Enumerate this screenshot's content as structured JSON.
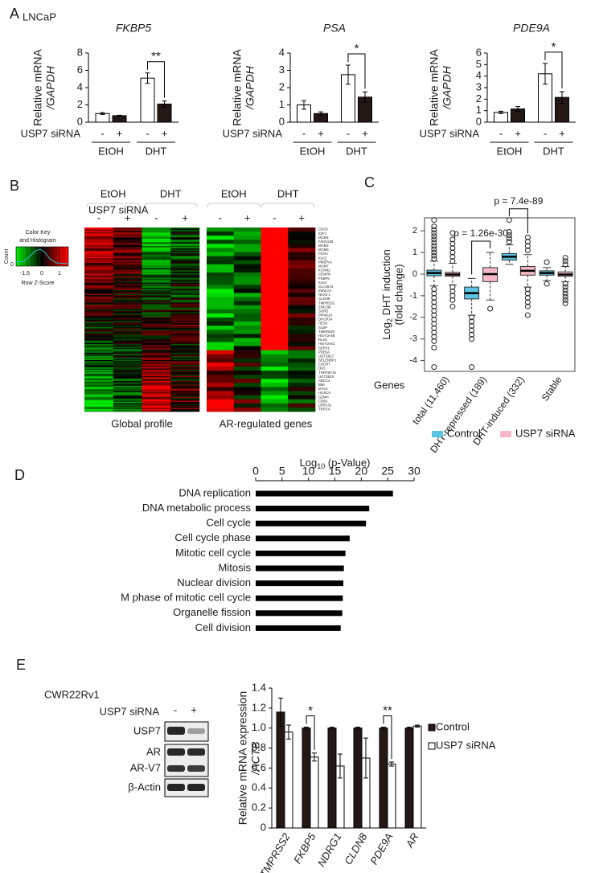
{
  "chart_data": [
    {
      "type": "bar",
      "title": "FKBP5",
      "ylabel": [
        "Relative mRNA",
        "/GAPDH"
      ],
      "categories": [
        "EtOH",
        "DHT"
      ],
      "row_label": "USP7 siRNA",
      "series": [
        {
          "name": "-",
          "color": "#ffffff",
          "values": [
            1.0,
            5.1
          ],
          "errors": [
            0.1,
            0.6
          ]
        },
        {
          "name": "+",
          "color": "#231815",
          "values": [
            0.75,
            2.1
          ],
          "errors": [
            0.05,
            0.35
          ]
        }
      ],
      "ylim": [
        0,
        8
      ],
      "yticks": [
        0,
        2,
        4,
        6,
        8
      ],
      "significance": [
        null,
        "**"
      ]
    },
    {
      "type": "bar",
      "title": "PSA",
      "ylabel": [
        "Relative mRNA",
        "/GAPDH"
      ],
      "categories": [
        "EtOH",
        "DHT"
      ],
      "row_label": "USP7 siRNA",
      "series": [
        {
          "name": "-",
          "color": "#ffffff",
          "values": [
            1.0,
            2.75
          ],
          "errors": [
            0.25,
            0.55
          ]
        },
        {
          "name": "+",
          "color": "#231815",
          "values": [
            0.5,
            1.45
          ],
          "errors": [
            0.1,
            0.3
          ]
        }
      ],
      "ylim": [
        0,
        4
      ],
      "yticks": [
        0,
        1,
        2,
        3,
        4
      ],
      "significance": [
        null,
        "*"
      ]
    },
    {
      "type": "bar",
      "title": "PDE9A",
      "ylabel": [
        "Relative mRNA",
        "/GAPDH"
      ],
      "categories": [
        "EtOH",
        "DHT"
      ],
      "row_label": "USP7 siRNA",
      "series": [
        {
          "name": "-",
          "color": "#ffffff",
          "values": [
            0.85,
            4.2
          ],
          "errors": [
            0.1,
            0.9
          ]
        },
        {
          "name": "+",
          "color": "#231815",
          "values": [
            1.15,
            2.15
          ],
          "errors": [
            0.2,
            0.5
          ]
        }
      ],
      "ylim": [
        0,
        6
      ],
      "yticks": [
        0,
        1,
        2,
        3,
        4,
        5,
        6
      ],
      "significance": [
        null,
        "*"
      ]
    },
    {
      "type": "box",
      "ylabel": {
        "main": "Log",
        "sub": "2",
        "rest": " DHT induction",
        "line2": "(fold change)"
      },
      "xlabel": "Genes",
      "categories": [
        "total (11,460)",
        "DHT-repressed (189)",
        "DHT-induced (332)",
        "Stable"
      ],
      "series": [
        {
          "name": "Control",
          "color": "#5bc3e3",
          "whisker_low": [
            -0.55,
            -1.9,
            0.45,
            -0.3
          ],
          "q1": [
            -0.08,
            -1.15,
            0.65,
            -0.05
          ],
          "median": [
            0.05,
            -0.88,
            0.8,
            0.05
          ],
          "q3": [
            0.18,
            -0.6,
            0.95,
            0.15
          ],
          "whisker_high": [
            0.6,
            -0.2,
            1.35,
            0.3
          ],
          "outliers": [
            [
              0.7,
              0.85,
              1.0,
              1.15,
              1.3,
              1.45,
              1.6,
              1.75,
              1.9,
              2.05,
              2.2,
              2.5,
              -0.7,
              -0.9,
              -1.1,
              -1.3,
              -1.5,
              -1.7,
              -1.9,
              -2.1,
              -2.3,
              -2.5,
              -2.7,
              -2.9,
              -3.1,
              -3.4,
              -4.3
            ],
            [
              -2.0,
              -2.2,
              -2.4,
              -2.6,
              -2.8,
              -3.0,
              -4.3
            ],
            [
              1.5,
              1.65,
              1.8,
              1.95,
              2.5
            ],
            [
              -0.45,
              0.55
            ]
          ]
        },
        {
          "name": "USP7 siRNA",
          "color": "#f6b8c6",
          "whisker_low": [
            -0.5,
            -1.2,
            -0.6,
            -0.35
          ],
          "q1": [
            -0.1,
            -0.35,
            -0.05,
            -0.1
          ],
          "median": [
            -0.02,
            0.0,
            0.15,
            -0.02
          ],
          "q3": [
            0.08,
            0.3,
            0.35,
            0.1
          ],
          "whisker_high": [
            0.5,
            1.0,
            0.9,
            0.35
          ],
          "outliers": [
            [
              0.6,
              0.8,
              1.0,
              1.2,
              1.4,
              1.6,
              1.9,
              -0.6,
              -0.8,
              -1.0,
              -1.2,
              -1.5
            ],
            [
              -1.6
            ],
            [
              1.1,
              1.3,
              1.5,
              1.7,
              -0.7,
              -0.9,
              -1.1,
              -1.3,
              -1.5,
              -1.9
            ],
            [
              0.45,
              0.6,
              0.75,
              -0.45,
              -0.6,
              -0.75,
              -0.9,
              -1.05,
              -1.2,
              -1.35
            ]
          ]
        }
      ],
      "ylim": [
        -4.5,
        2.6
      ],
      "yticks": [
        -4,
        -3,
        -2,
        -1,
        0,
        1,
        2
      ],
      "comparisons": [
        null,
        "p = 1.26e-30",
        "p = 7.4e-89",
        null
      ],
      "legend": "bottom"
    },
    {
      "type": "hbar",
      "xlabel": {
        "main": "Log",
        "sub": "10",
        "rest": " (p-Value)"
      },
      "categories": [
        "DNA replication",
        "DNA metabolic process",
        "Cell cycle",
        "Cell cycle phase",
        "Mitotic cell cycle",
        "Mitosis",
        "Nuclear division",
        "M phase of mitotic cell cycle",
        "Organelle fission",
        "Cell division"
      ],
      "values": [
        26,
        21.5,
        20.9,
        17.8,
        17,
        16.7,
        16.6,
        16.5,
        16.4,
        16.1
      ],
      "color": "#000000",
      "xlim": [
        0,
        30
      ],
      "xticks": [
        0,
        5,
        10,
        15,
        20,
        25,
        30
      ]
    },
    {
      "type": "bar",
      "ylabel": [
        "Relative mRNA expression",
        "/ACTB"
      ],
      "categories": [
        "TMPRSS2",
        "FKBP5",
        "NDRG1",
        "CLDN8",
        "PDE9A",
        "AR"
      ],
      "series": [
        {
          "name": "Control",
          "color": "#231815",
          "values": [
            1.16,
            1.0,
            1.0,
            1.0,
            1.0,
            1.0
          ],
          "errors": [
            0.14,
            0.01,
            0.01,
            0.01,
            0.01,
            0.01
          ]
        },
        {
          "name": "USP7 siRNA",
          "color": "#ffffff",
          "values": [
            0.96,
            0.71,
            0.62,
            0.7,
            0.64,
            1.02
          ],
          "errors": [
            0.07,
            0.04,
            0.12,
            0.2,
            0.02,
            0.01
          ]
        }
      ],
      "ylim": [
        0,
        1.4
      ],
      "yticks": [
        0,
        0.2,
        0.4,
        0.6,
        0.8,
        {
          "value": 1,
          "label": "1.0"
        },
        1.2,
        1.4
      ],
      "significance": [
        null,
        "*",
        null,
        null,
        "**",
        null
      ],
      "legend": "right"
    }
  ],
  "panel_a": {
    "label": "A",
    "cell_line": "LNCaP"
  },
  "panel_b": {
    "label": "B",
    "groups": [
      "EtOH",
      "DHT",
      "EtOH",
      "DHT"
    ],
    "row_label": "USP7 siRNA",
    "signs": [
      "-",
      "+",
      "-",
      "+",
      "-",
      "+",
      "-",
      "+"
    ],
    "color_key": {
      "title": [
        "Color Key",
        "and Histogram"
      ],
      "y_label": "Count",
      "y_tick": "0",
      "x_ticks": [
        "-1.5",
        "0",
        "1"
      ],
      "x_label": "Row Z-Score"
    },
    "captions": [
      "Global profile",
      "AR-regulated genes"
    ],
    "genes": [
      "CDC6",
      "E2F1",
      "MCM4",
      "FAM111B",
      "MCM2",
      "MCM5",
      "PCNA",
      "KLK2",
      "PMEPA1",
      "MCM7",
      "KCNN2",
      "CENPN",
      "FKBP5",
      "KLK4",
      "SLC45A3",
      "ZWILCH",
      "NKX3-1",
      "CLDN8",
      "TMPRSS2",
      "ZNF239",
      "SORD",
      "PIP4K2A",
      "DHCR24",
      "HES6",
      "SLBP",
      "TMEM109",
      "HIST1H4B",
      "RLN1",
      "HIST1H4C",
      "SEPP1",
      "PDE9A",
      "UGT2B17",
      "SELENBP1",
      "CXCR7",
      "DDC",
      "TNFRSF19",
      "UGT2B15",
      "ABCC4",
      "BMI",
      "MYLK",
      "HOXC9",
      "GZMH",
      "CD8A",
      "LRRC31",
      "TRPC4"
    ]
  },
  "panel_c": {
    "label": "C"
  },
  "panel_d": {
    "label": "D"
  },
  "panel_e": {
    "label": "E",
    "cell_line": "CWR22Rv1",
    "blot": {
      "row_label": "USP7 siRNA",
      "signs": [
        "-",
        "+"
      ],
      "bands": [
        "USP7",
        "AR",
        "AR-V7",
        "β-Actin"
      ]
    }
  }
}
